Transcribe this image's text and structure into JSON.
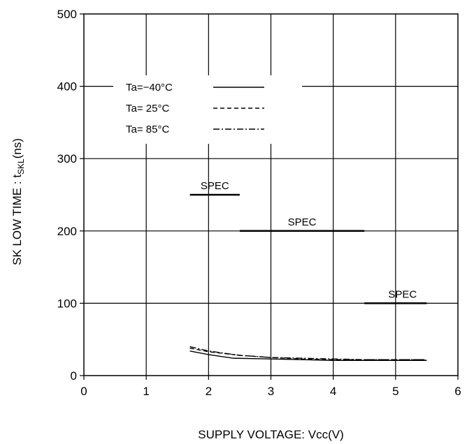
{
  "chart_data": {
    "type": "line",
    "title": "",
    "xlabel": "SUPPLY VOLTAGE: Vcc(V)",
    "ylabel_prefix": "SK LOW TIME : t",
    "ylabel_sub": "SKL",
    "ylabel_suffix": "(ns)",
    "xlim": [
      0,
      6
    ],
    "ylim": [
      0,
      500
    ],
    "xticks": [
      "0",
      "1",
      "2",
      "3",
      "4",
      "5",
      "6"
    ],
    "yticks": [
      "0",
      "100",
      "200",
      "300",
      "400",
      "500"
    ],
    "grid": true,
    "legend_position": "top-left",
    "series": [
      {
        "name": "Ta=−40°C",
        "dash": "solid",
        "x": [
          1.7,
          2.0,
          2.4,
          3.0,
          3.5,
          4.0,
          4.5,
          5.0,
          5.5
        ],
        "y": [
          34,
          29,
          24,
          23,
          22,
          21,
          21,
          21,
          21
        ]
      },
      {
        "name": "Ta= 25°C",
        "dash": "dashed",
        "x": [
          1.7,
          2.0,
          2.5,
          3.0,
          3.5,
          4.0,
          4.5,
          5.0,
          5.5
        ],
        "y": [
          38,
          33,
          28,
          25,
          23,
          22,
          22,
          22,
          22
        ]
      },
      {
        "name": "Ta= 85°C",
        "dash": "dashdot",
        "x": [
          1.7,
          2.0,
          2.5,
          3.0,
          3.5,
          4.0,
          4.5,
          5.0,
          5.5
        ],
        "y": [
          40,
          34,
          28,
          25,
          24,
          23,
          22,
          22,
          22
        ]
      }
    ],
    "spec_lines": [
      {
        "label": "SPEC",
        "x": [
          1.7,
          2.5
        ],
        "y": 250
      },
      {
        "label": "SPEC",
        "x": [
          2.5,
          4.5
        ],
        "y": 200
      },
      {
        "label": "SPEC",
        "x": [
          4.5,
          5.5
        ],
        "y": 100
      }
    ]
  }
}
